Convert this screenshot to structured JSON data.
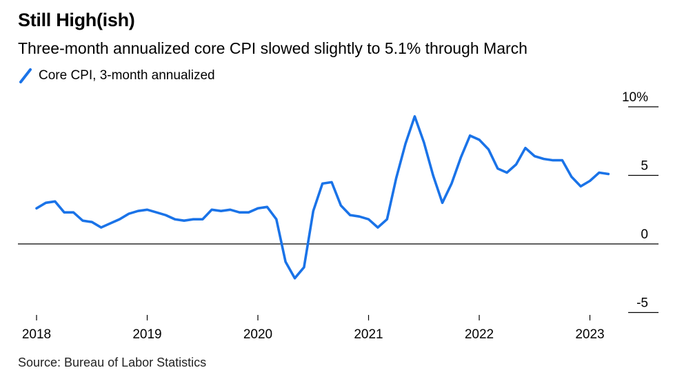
{
  "title": "Still High(ish)",
  "subtitle": "Three-month annualized core CPI slowed slightly to 5.1% through March",
  "source": "Source: Bureau of Labor Statistics",
  "colors": {
    "series": "#1a73e8",
    "axis": "#000000"
  },
  "chart_data": {
    "type": "line",
    "legend_position": "top-left",
    "grid": false,
    "ylim": [
      -5,
      10
    ],
    "yticks": [
      {
        "value": 10,
        "label": "10%"
      },
      {
        "value": 5,
        "label": "5"
      },
      {
        "value": 0,
        "label": "0"
      },
      {
        "value": -5,
        "label": "-5"
      }
    ],
    "xticks": [
      "2018",
      "2019",
      "2020",
      "2021",
      "2022",
      "2023"
    ],
    "series": [
      {
        "name": "Core CPI, 3-month annualized",
        "x": [
          "2018-01",
          "2018-02",
          "2018-03",
          "2018-04",
          "2018-05",
          "2018-06",
          "2018-07",
          "2018-08",
          "2018-09",
          "2018-10",
          "2018-11",
          "2018-12",
          "2019-01",
          "2019-02",
          "2019-03",
          "2019-04",
          "2019-05",
          "2019-06",
          "2019-07",
          "2019-08",
          "2019-09",
          "2019-10",
          "2019-11",
          "2019-12",
          "2020-01",
          "2020-02",
          "2020-03",
          "2020-04",
          "2020-05",
          "2020-06",
          "2020-07",
          "2020-08",
          "2020-09",
          "2020-10",
          "2020-11",
          "2020-12",
          "2021-01",
          "2021-02",
          "2021-03",
          "2021-04",
          "2021-05",
          "2021-06",
          "2021-07",
          "2021-08",
          "2021-09",
          "2021-10",
          "2021-11",
          "2021-12",
          "2022-01",
          "2022-02",
          "2022-03",
          "2022-04",
          "2022-05",
          "2022-06",
          "2022-07",
          "2022-08",
          "2022-09",
          "2022-10",
          "2022-11",
          "2022-12",
          "2023-01",
          "2023-02",
          "2023-03"
        ],
        "values": [
          2.6,
          3.0,
          3.1,
          2.3,
          2.3,
          1.7,
          1.6,
          1.2,
          1.5,
          1.8,
          2.2,
          2.4,
          2.5,
          2.3,
          2.1,
          1.8,
          1.7,
          1.8,
          1.8,
          2.5,
          2.4,
          2.5,
          2.3,
          2.3,
          2.6,
          2.7,
          1.8,
          -1.3,
          -2.5,
          -1.7,
          2.4,
          4.4,
          4.5,
          2.8,
          2.1,
          2.0,
          1.8,
          1.2,
          1.8,
          4.8,
          7.3,
          9.3,
          7.4,
          5.0,
          3.0,
          4.4,
          6.3,
          7.9,
          7.6,
          6.9,
          5.5,
          5.2,
          5.8,
          7.0,
          6.4,
          6.2,
          6.1,
          6.1,
          4.9,
          4.2,
          4.6,
          5.2,
          5.1
        ]
      }
    ]
  }
}
